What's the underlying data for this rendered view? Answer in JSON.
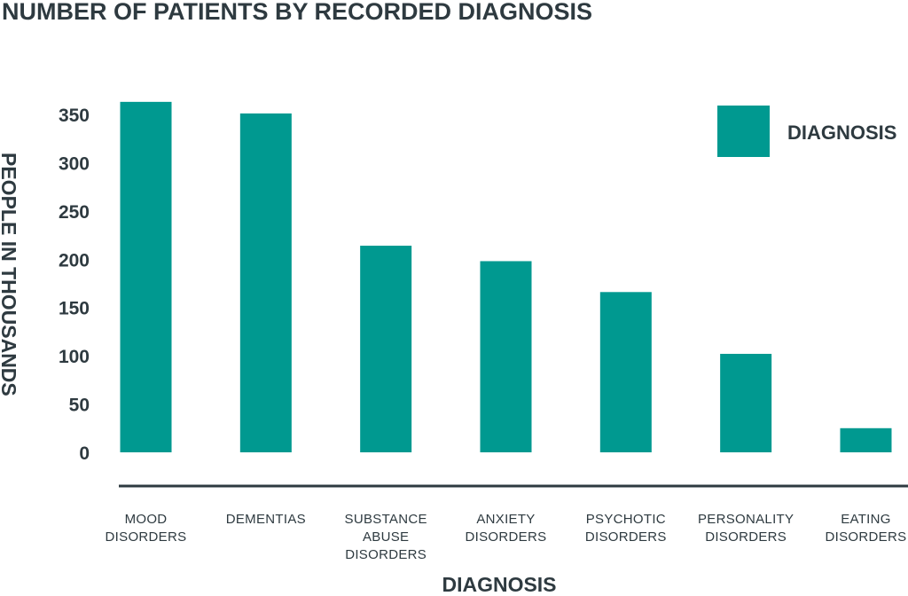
{
  "chart_data": {
    "type": "bar",
    "title": "NUMBER OF PATIENTS BY RECORDED DIAGNOSIS",
    "xlabel": "DIAGNOSIS",
    "ylabel": "PEOPLE IN THOUSANDS",
    "categories": [
      [
        "MOOD",
        "DISORDERS"
      ],
      [
        "DEMENTIAS"
      ],
      [
        "SUBSTANCE",
        "ABUSE",
        "DISORDERS"
      ],
      [
        "ANXIETY",
        "DISORDERS"
      ],
      [
        "PSYCHOTIC",
        "DISORDERS"
      ],
      [
        "PERSONALITY",
        "DISORDERS"
      ],
      [
        "EATING",
        "DISORDERS"
      ]
    ],
    "series": [
      {
        "name": "DIAGNOSIS",
        "values": [
          363,
          351,
          214,
          198,
          166,
          102,
          25
        ],
        "color": "#009990"
      }
    ],
    "yticks": [
      "0",
      "50",
      "100",
      "150",
      "200",
      "250",
      "300",
      "350"
    ],
    "ylim": [
      0,
      350
    ],
    "grid": false,
    "legend_position": "top-right",
    "axis_color": "#2e3a40"
  }
}
